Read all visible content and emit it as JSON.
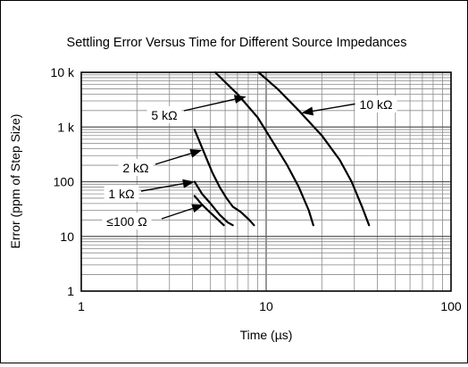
{
  "chart_data": {
    "type": "line",
    "title": "Settling Error Versus Time for Different Source Impedances",
    "xlabel": "Time (µs)",
    "ylabel": "Error (ppm of Step Size)",
    "x_scale": "log",
    "y_scale": "log",
    "xlim": [
      1,
      100
    ],
    "ylim": [
      1,
      10000
    ],
    "grid": true,
    "x_ticks": [
      {
        "value": 1,
        "label": "1"
      },
      {
        "value": 10,
        "label": "10"
      },
      {
        "value": 100,
        "label": "100"
      }
    ],
    "y_ticks": [
      {
        "value": 1,
        "label": "1"
      },
      {
        "value": 10,
        "label": "10"
      },
      {
        "value": 100,
        "label": "100"
      },
      {
        "value": 1000,
        "label": "1 k"
      },
      {
        "value": 10000,
        "label": "10 k"
      }
    ],
    "series": [
      {
        "name": "10 kΩ",
        "points": [
          [
            9.1,
            10000
          ],
          [
            11.5,
            5000
          ],
          [
            15,
            2000
          ],
          [
            20,
            700
          ],
          [
            25,
            250
          ],
          [
            29,
            100
          ],
          [
            33,
            35
          ],
          [
            36,
            16
          ]
        ]
      },
      {
        "name": "5 kΩ",
        "points": [
          [
            5.3,
            10000
          ],
          [
            7,
            4000
          ],
          [
            9,
            1500
          ],
          [
            11,
            500
          ],
          [
            13,
            200
          ],
          [
            15,
            80
          ],
          [
            17,
            30
          ],
          [
            18,
            16
          ]
        ]
      },
      {
        "name": "2 kΩ",
        "points": [
          [
            4.1,
            900
          ],
          [
            4.6,
            350
          ],
          [
            5.1,
            150
          ],
          [
            5.6,
            80
          ],
          [
            6.1,
            50
          ],
          [
            6.6,
            35
          ],
          [
            7.3,
            28
          ],
          [
            8.1,
            20
          ],
          [
            8.6,
            16
          ]
        ]
      },
      {
        "name": "1 kΩ",
        "points": [
          [
            4.1,
            100
          ],
          [
            4.5,
            60
          ],
          [
            5,
            40
          ],
          [
            5.6,
            25
          ],
          [
            6.2,
            18
          ],
          [
            6.6,
            16
          ]
        ]
      },
      {
        "name": "≤100 Ω",
        "points": [
          [
            4.1,
            55
          ],
          [
            4.5,
            38
          ],
          [
            5,
            27
          ],
          [
            5.5,
            20
          ],
          [
            5.9,
            16
          ]
        ]
      }
    ],
    "annotations": [
      {
        "label": "10 kΩ",
        "series": "10 kΩ",
        "arrow_to": [
          15.5,
          1800
        ]
      },
      {
        "label": "5 kΩ",
        "series": "5 kΩ",
        "arrow_to": [
          7.8,
          3600
        ]
      },
      {
        "label": "2 kΩ",
        "series": "2 kΩ",
        "arrow_to": [
          4.5,
          380
        ]
      },
      {
        "label": "1 kΩ",
        "series": "1 kΩ",
        "arrow_to": [
          4.1,
          100
        ]
      },
      {
        "label": "≤100 Ω",
        "series": "≤100 Ω",
        "arrow_to": [
          4.6,
          38
        ]
      }
    ]
  }
}
